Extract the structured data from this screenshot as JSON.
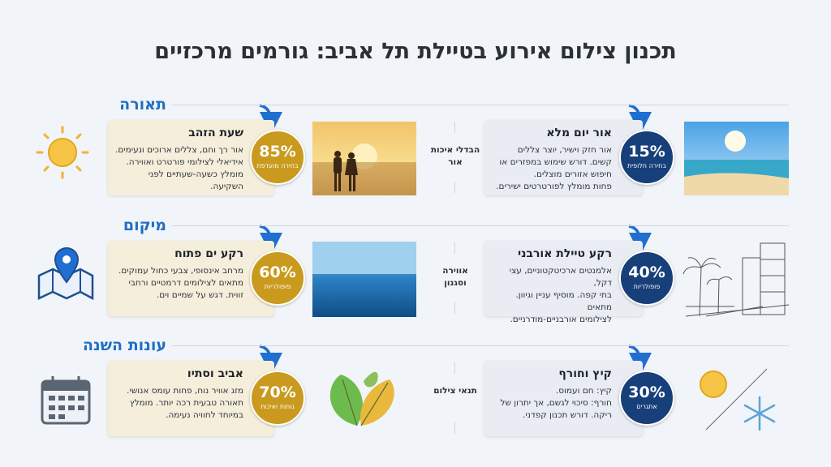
{
  "header": {
    "title": "תכנון צילום אירוע בטיילת תל אביב: גורמים מרכזיים"
  },
  "sections": [
    {
      "heading": "תאורה",
      "left": {
        "title": "שעת הזהב",
        "lines": [
          "אור רך וחם, צללים ארוכים ונעימים.",
          "אידיאלי לצילומי פורטרט ואווירה.",
          "מומלץ כשעה-שעתיים לפני",
          "השקיעה."
        ],
        "badge": "85%",
        "badge_label": "בחירה מועדפת"
      },
      "center": "הבדלי איכות אור",
      "right": {
        "title": "אור יום מלא",
        "lines": [
          "אור חזק וישיר, יוצר צללים",
          "קשים. דורש שימוש במפזרים או",
          "חיפוש אזורים מוצלים.",
          "פחות מומלץ לפורטרטים ישירים."
        ],
        "badge": "15%",
        "badge_label": "בחירה חלופית"
      }
    },
    {
      "heading": "מיקום",
      "left": {
        "title": "רקע ים פתוח",
        "lines": [
          "מרחב אינסופי, צבעי כחול עמוקים.",
          "מתאים לצילומים דרמטיים ורחבי",
          "זווית. דגש על שמיים וים."
        ],
        "badge": "60%",
        "badge_label": "פופולריות"
      },
      "center": "אווירה וסגנון",
      "right": {
        "title": "רקע טיילת אורבני",
        "lines": [
          "אלמנטים ארכיטקטוניים, עצי דקל,",
          "בתי קפה. מוסיף עניין וגיוון. מתאים",
          "לצילומים אורבניים-מודרניים."
        ],
        "badge": "40%",
        "badge_label": "פופולריות"
      }
    },
    {
      "heading": "עונות השנה",
      "left": {
        "title": "אביב וסתיו",
        "lines": [
          "מזג אוויר נוח, פחות עומס אנושי.",
          "תאורה טבעית רכה יותר. מומלץ",
          "במיוחד לחוויה נעימה."
        ],
        "badge": "70%",
        "badge_label": "נוחות ואיכות"
      },
      "center": "תנאי צילום",
      "right": {
        "title": "קיץ וחורף",
        "lines": [
          "קיץ: חם ועמוס.",
          "חורף: סיכוי לגשם, אך יתרון של",
          "ריקה. דורש תכנון קפדני."
        ],
        "badge": "30%",
        "badge_label": "אתגרים"
      }
    }
  ]
}
